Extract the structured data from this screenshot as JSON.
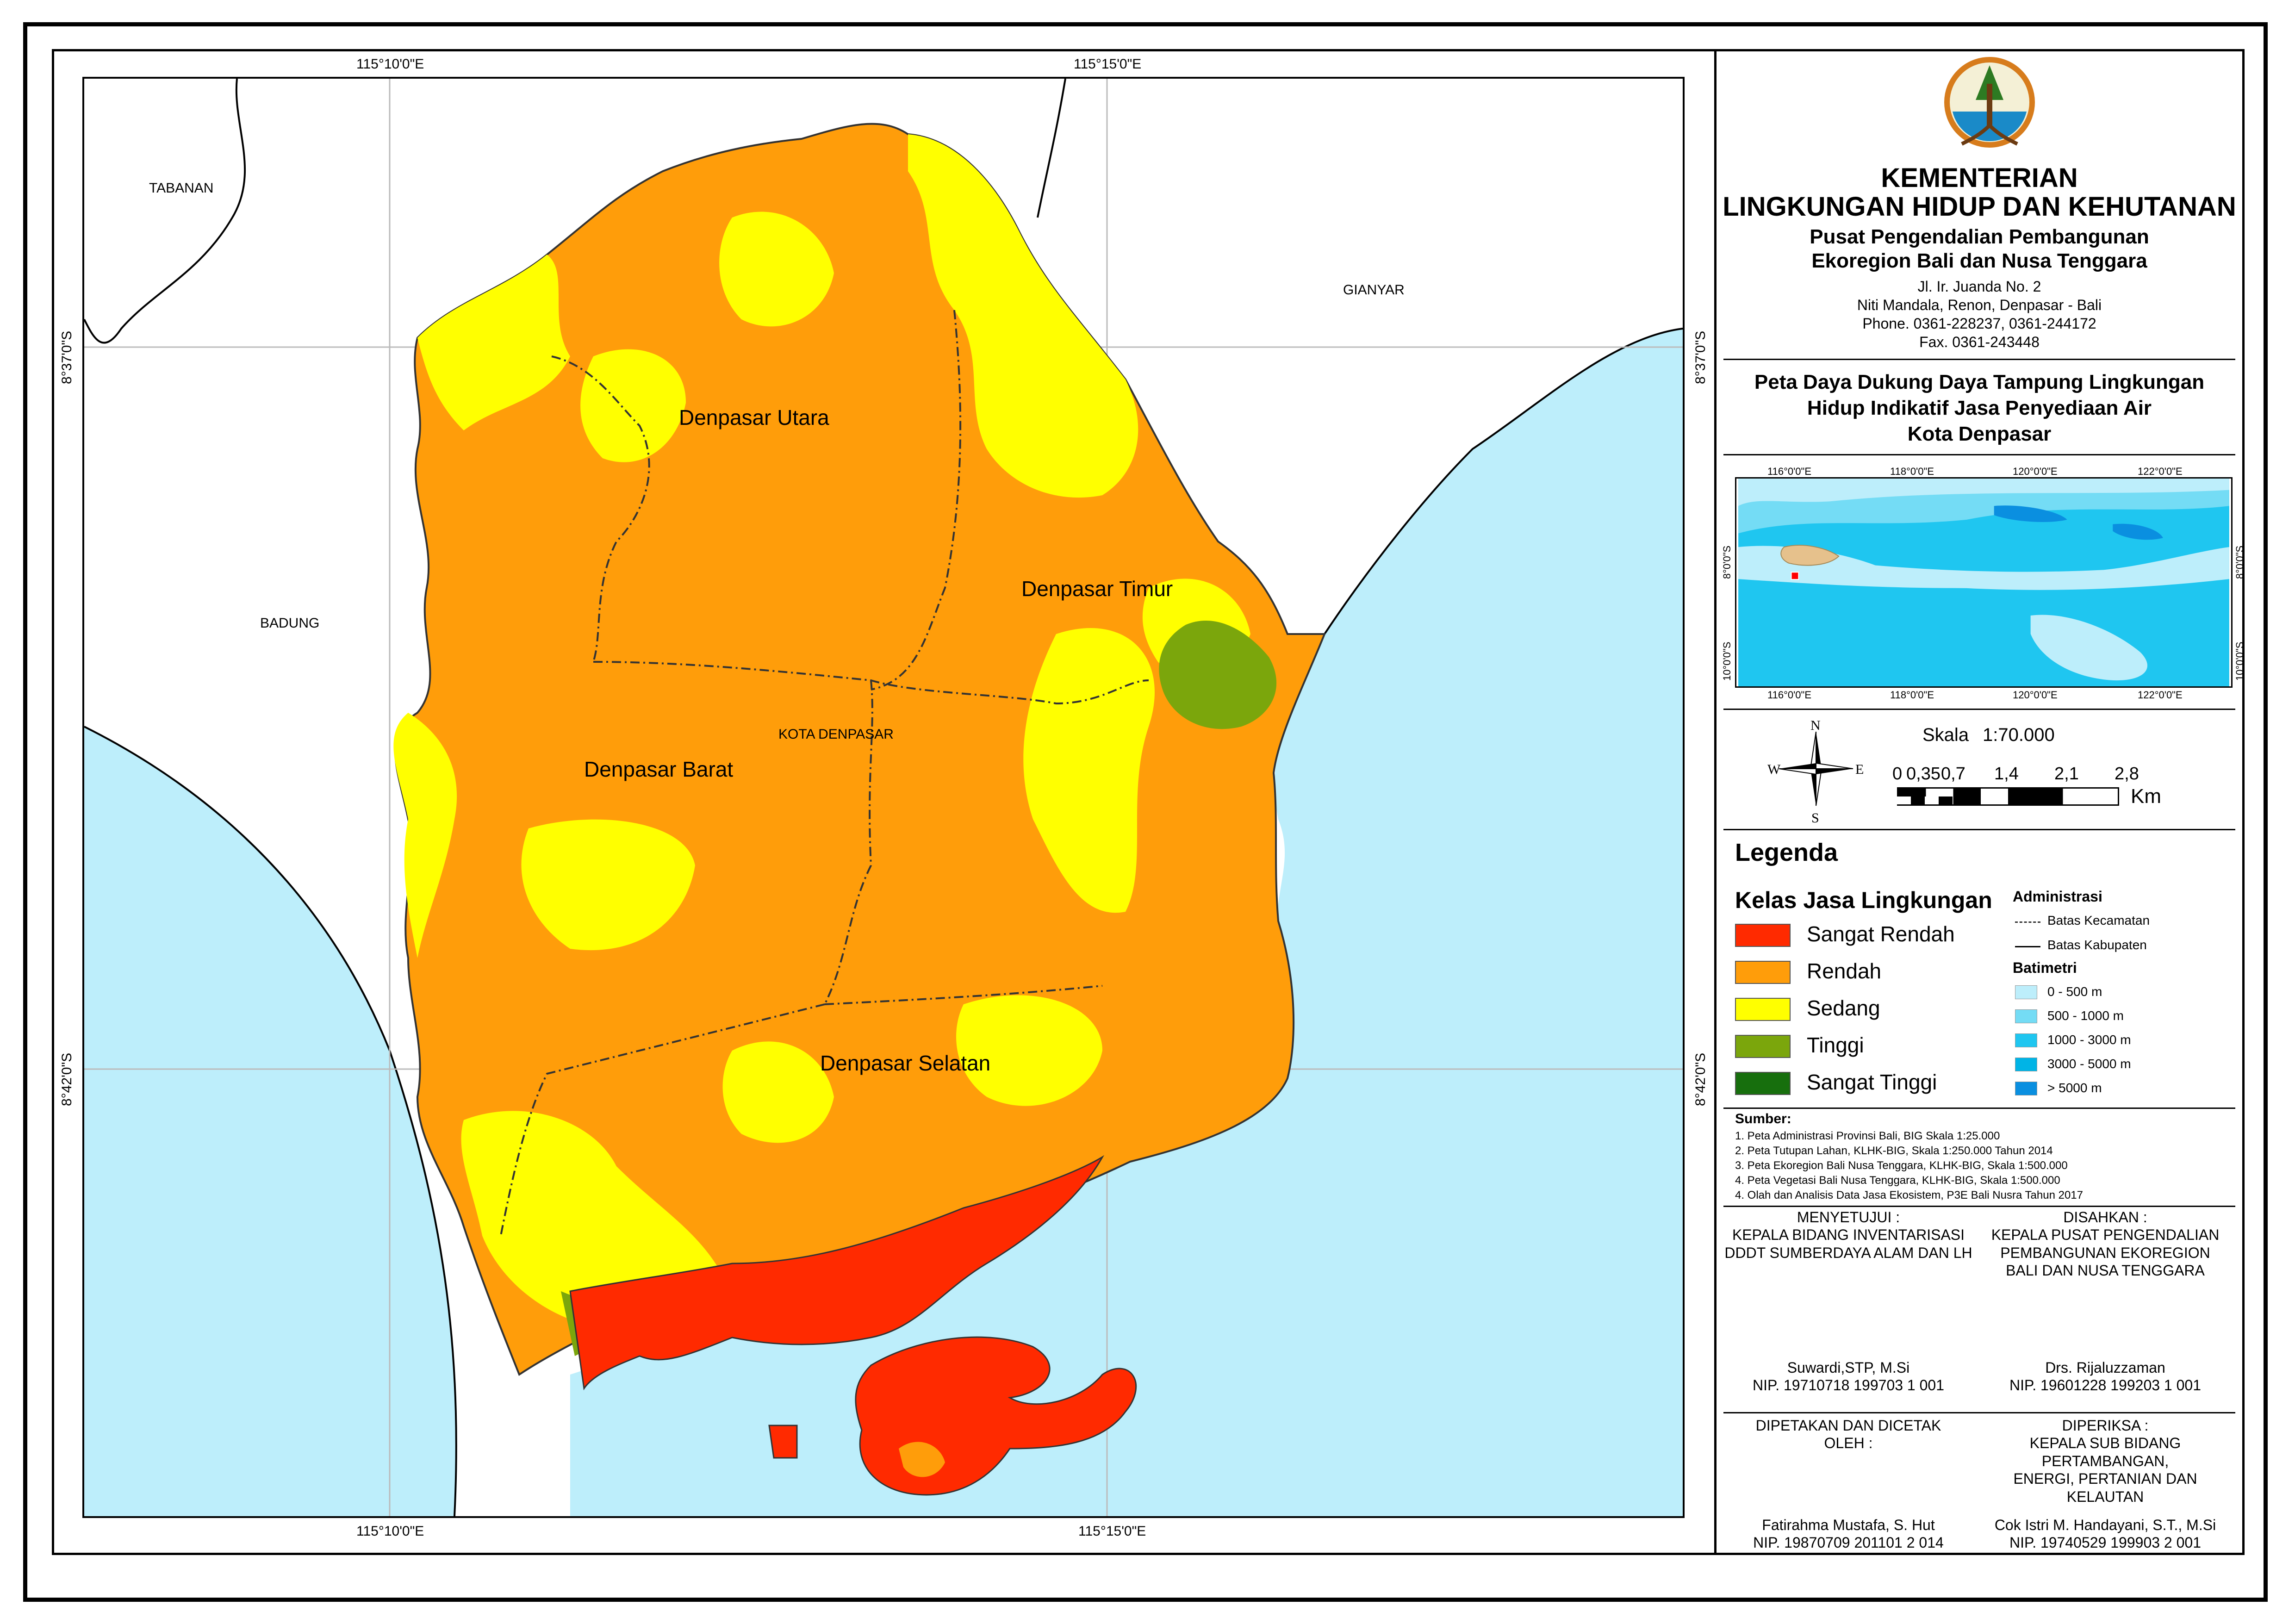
{
  "map": {
    "grid_labels": {
      "top": [
        "115°10'0\"E",
        "115°15'0\"E"
      ],
      "bottom": [
        "115°10'0\"E",
        "115°15'0\"E"
      ],
      "left": [
        "8°37'0\"S",
        "8°42'0\"S"
      ],
      "right": [
        "8°37'0\"S",
        "8°42'0\"S"
      ]
    },
    "regions": {
      "tabanan": "TABANAN",
      "gianyar": "GIANYAR",
      "badung": "BADUNG",
      "kota": "KOTA DENPASAR",
      "utara": "Denpasar Utara",
      "timur": "Denpasar Timur",
      "barat": "Denpasar Barat",
      "selatan": "Denpasar Selatan"
    },
    "colors": {
      "sea": "#bdeefb",
      "sangat_rendah": "#ff2a00",
      "rendah": "#ff9d0a",
      "sedang": "#ffff00",
      "tinggi": "#7ba60c",
      "sangat_tinggi": "#176f0d"
    }
  },
  "header": {
    "logo_icon": "klhk-logo-icon",
    "ministry_line1": "KEMENTERIAN",
    "ministry_line2": "LINGKUNGAN HIDUP DAN KEHUTANAN",
    "center_line1": "Pusat Pengendalian Pembangunan",
    "center_line2": "Ekoregion Bali dan Nusa Tenggara",
    "address1": "Jl. Ir. Juanda No. 2",
    "address2": "Niti Mandala, Renon, Denpasar - Bali",
    "phone": "Phone. 0361-228237, 0361-244172",
    "fax": "Fax. 0361-243448"
  },
  "title": {
    "line1": "Peta Daya Dukung Daya Tampung Lingkungan",
    "line2": "Hidup Indikatif Jasa Penyediaan Air",
    "line3": "Kota Denpasar"
  },
  "inset": {
    "top_ticks": [
      "116°0'0\"E",
      "118°0'0\"E",
      "120°0'0\"E",
      "122°0'0\"E"
    ],
    "bottom_ticks": [
      "116°0'0\"E",
      "118°0'0\"E",
      "120°0'0\"E",
      "122°0'0\"E"
    ],
    "left_ticks": [
      "8°0'0\"S",
      "10°0'0\"S"
    ],
    "right_ticks": [
      "8°0'0\"S",
      "10°0'0\"S"
    ]
  },
  "scale": {
    "label": "Skala",
    "ratio": "1:70.000",
    "ticks": [
      "0",
      "0,35",
      "0,7",
      "1,4",
      "2,1",
      "2,8"
    ],
    "unit": "Km",
    "compass": {
      "n": "N",
      "s": "S",
      "e": "E",
      "w": "W"
    }
  },
  "legend": {
    "heading": "Legenda",
    "classes_title": "Kelas Jasa Lingkungan",
    "classes": [
      {
        "label": "Sangat Rendah",
        "color": "#ff2a00"
      },
      {
        "label": "Rendah",
        "color": "#ff9d0a"
      },
      {
        "label": "Sedang",
        "color": "#ffff00"
      },
      {
        "label": "Tinggi",
        "color": "#7ba60c"
      },
      {
        "label": "Sangat Tinggi",
        "color": "#176f0d"
      }
    ],
    "admin_title": "Administrasi",
    "admin": [
      {
        "label": "Batas Kecamatan",
        "style": "dash-dot"
      },
      {
        "label": "Batas Kabupaten",
        "style": "solid"
      }
    ],
    "bati_title": "Batimetri",
    "bati": [
      {
        "label": "0 - 500 m",
        "color": "#bdeefb"
      },
      {
        "label": "500 - 1000 m",
        "color": "#74dcf5"
      },
      {
        "label": "1000 - 3000 m",
        "color": "#1fc6f0"
      },
      {
        "label": "3000 - 5000 m",
        "color": "#00b4e6"
      },
      {
        "label": "> 5000 m",
        "color": "#0a8fe0"
      }
    ]
  },
  "sources": {
    "title": "Sumber:",
    "items": [
      "1. Peta Administrasi Provinsi Bali, BIG Skala 1:25.000",
      "2. Peta Tutupan Lahan, KLHK-BIG, Skala 1:250.000 Tahun 2014",
      "3. Peta Ekoregion Bali Nusa Tenggara, KLHK-BIG, Skala 1:500.000",
      "4. Peta Vegetasi Bali Nusa Tenggara, KLHK-BIG, Skala 1:500.000",
      "4. Olah dan Analisis Data Jasa Ekosistem, P3E Bali Nusra Tahun 2017"
    ]
  },
  "signatures": {
    "left_top": {
      "role1": "MENYETUJUI :",
      "role2": "KEPALA BIDANG INVENTARISASI",
      "role3": "DDDT SUMBERDAYA ALAM DAN LH",
      "name": "Suwardi,STP, M.Si",
      "nip": "NIP. 19710718 199703 1 001"
    },
    "right_top": {
      "role1": "DISAHKAN :",
      "role2": "KEPALA PUSAT PENGENDALIAN",
      "role3": "PEMBANGUNAN EKOREGION",
      "role4": "BALI DAN NUSA TENGGARA",
      "name": "Drs. Rijaluzzaman",
      "nip": "NIP. 19601228 199203 1 001"
    },
    "left_bottom": {
      "role1": "DIPETAKAN DAN DICETAK",
      "role2": "OLEH :",
      "name": "Fatirahma Mustafa, S. Hut",
      "nip": "NIP. 19870709 201101 2 014"
    },
    "right_bottom": {
      "role1": "DIPERIKSA :",
      "role2": "KEPALA SUB BIDANG PERTAMBANGAN,",
      "role3": "ENERGI, PERTANIAN DAN KELAUTAN",
      "name": "Cok Istri M. Handayani, S.T., M.Si",
      "nip": "NIP. 19740529 199903 2 001"
    }
  }
}
